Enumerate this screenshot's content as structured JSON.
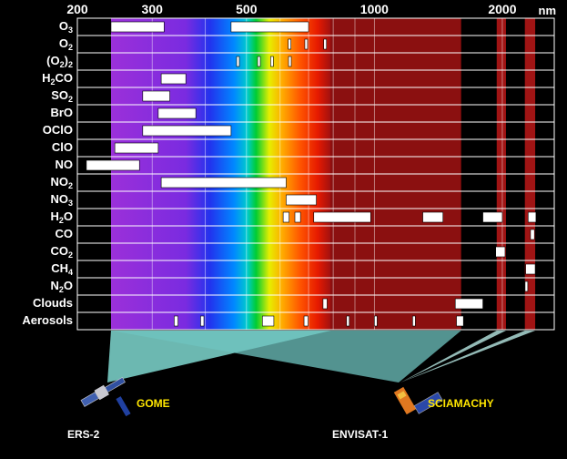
{
  "axis": {
    "unit": "nm",
    "ticks": [
      {
        "label": "200",
        "nm": 200
      },
      {
        "label": "300",
        "nm": 300
      },
      {
        "label": "500",
        "nm": 500
      },
      {
        "label": "1000",
        "nm": 1000
      },
      {
        "label": "2000",
        "nm": 2000
      }
    ]
  },
  "rows": [
    {
      "name": "O3",
      "label": "O",
      "sub": "3",
      "bands": [
        [
          240,
          320
        ],
        [
          460,
          700
        ]
      ]
    },
    {
      "name": "O2",
      "label": "O",
      "sub": "2",
      "bands": [
        [
          627,
          632
        ],
        [
          686,
          690
        ],
        [
          760,
          768
        ]
      ]
    },
    {
      "name": "(O2)2",
      "label": "(O",
      "sub": "2",
      "post": ")",
      "sub2": "2",
      "bands": [
        [
          474,
          479
        ],
        [
          531,
          536
        ],
        [
          570,
          578
        ],
        [
          628,
          633
        ]
      ]
    },
    {
      "name": "H2CO",
      "label": "H",
      "sub": "2",
      "post": "CO",
      "bands": [
        [
          315,
          360
        ]
      ]
    },
    {
      "name": "SO2",
      "label": "SO",
      "sub": "2",
      "bands": [
        [
          285,
          330
        ]
      ]
    },
    {
      "name": "BrO",
      "label": "BrO",
      "bands": [
        [
          310,
          380
        ]
      ]
    },
    {
      "name": "OClO",
      "label": "OClO",
      "bands": [
        [
          285,
          460
        ]
      ]
    },
    {
      "name": "ClO",
      "label": "ClO",
      "bands": [
        [
          245,
          310
        ]
      ]
    },
    {
      "name": "NO",
      "label": "NO",
      "bands": [
        [
          210,
          280
        ]
      ]
    },
    {
      "name": "NO2",
      "label": "NO",
      "sub": "2",
      "bands": [
        [
          315,
          620
        ]
      ]
    },
    {
      "name": "NO3",
      "label": "NO",
      "sub": "3",
      "bands": [
        [
          620,
          730
        ]
      ]
    },
    {
      "name": "H2O",
      "label": "H",
      "sub": "2",
      "post": "O",
      "bands": [
        [
          610,
          630
        ],
        [
          650,
          670
        ],
        [
          720,
          980
        ],
        [
          1300,
          1450
        ],
        [
          1800,
          2000
        ],
        [
          2300,
          2400
        ]
      ]
    },
    {
      "name": "CO",
      "label": "CO",
      "bands": [
        [
          2330,
          2380
        ]
      ]
    },
    {
      "name": "CO2",
      "label": "CO",
      "sub": "2",
      "bands": [
        [
          1930,
          2030
        ]
      ]
    },
    {
      "name": "CH4",
      "label": "CH",
      "sub": "4",
      "bands": [
        [
          2270,
          2390
        ]
      ]
    },
    {
      "name": "N2O",
      "label": "N",
      "sub": "2",
      "post": "O",
      "bands": [
        [
          2262,
          2275
        ]
      ]
    },
    {
      "name": "Clouds",
      "label": "Clouds",
      "bands": [
        [
          757,
          774
        ],
        [
          1550,
          1800
        ]
      ]
    },
    {
      "name": "Aerosols",
      "label": "Aerosols",
      "bands": [
        [
          338,
          345
        ],
        [
          390,
          397
        ],
        [
          545,
          580
        ],
        [
          683,
          698
        ],
        [
          860,
          872
        ],
        [
          1000,
          1008
        ],
        [
          1230,
          1240
        ],
        [
          1560,
          1620
        ]
      ]
    }
  ],
  "instruments": {
    "gome": {
      "label": "GOME",
      "range": [
        240,
        790
      ]
    },
    "sciamachy": {
      "label": "SCIAMACHY",
      "range": [
        240,
        2380
      ]
    }
  },
  "satellites": {
    "ers2": "ERS-2",
    "envisat": "ENVISAT-1"
  },
  "colors": {
    "uv_violet": "#8a2be2",
    "ir_dark_red": "#8b1010",
    "row_line": "#ffffff",
    "band_fill": "#ffffff",
    "beam": "#7fd8d0",
    "instrument_label": "#ffe600"
  }
}
